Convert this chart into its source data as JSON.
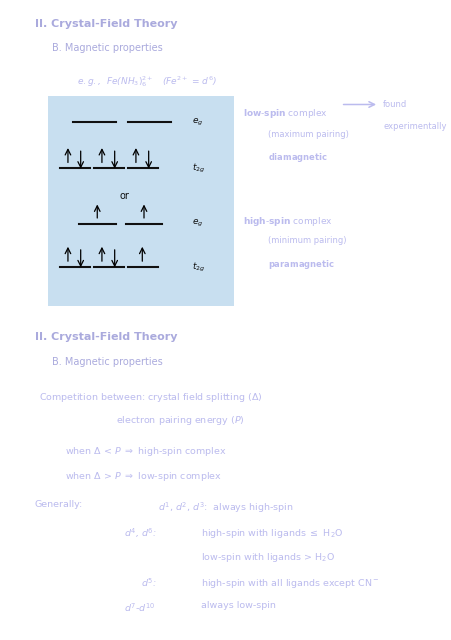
{
  "bg_outer": "#ffffff",
  "bg_slide": "#0000ee",
  "bg_diagram": "#c8dff0",
  "text_color_title": "#aaaadd",
  "text_color_body": "#bbbbee",
  "black": "#000000",
  "slide1_title": "II. Crystal-Field Theory",
  "slide1_subtitle": "    B. Magnetic properties",
  "slide2_title": "II. Crystal-Field Theory",
  "slide2_subtitle": "    B. Magnetic properties"
}
